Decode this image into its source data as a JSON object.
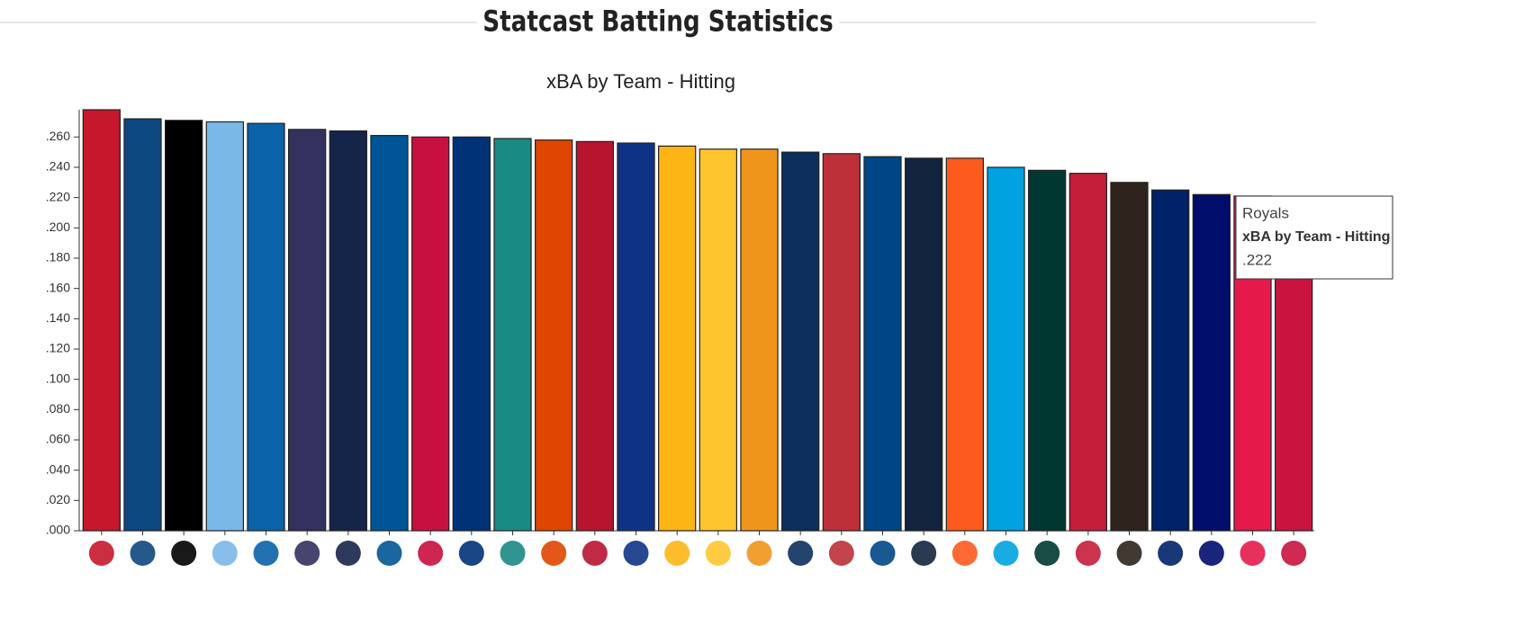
{
  "chart_data": {
    "type": "bar",
    "title": "Statcast Batting Statistics",
    "subtitle": "xBA by Team - Hitting",
    "categories": [
      null,
      null,
      null,
      null,
      null,
      null,
      null,
      null,
      null,
      null,
      null,
      null,
      null,
      null,
      null,
      null,
      null,
      null,
      null,
      null,
      null,
      null,
      null,
      null,
      null,
      null,
      null,
      null,
      null,
      null
    ],
    "values": [
      0.278,
      0.272,
      0.271,
      0.27,
      0.269,
      0.265,
      0.264,
      0.261,
      0.26,
      0.26,
      0.259,
      0.258,
      0.257,
      0.256,
      0.254,
      0.252,
      0.252,
      0.25,
      0.249,
      0.247,
      0.246,
      0.246,
      0.24,
      0.238,
      0.236,
      0.23,
      0.225,
      0.222,
      0.221,
      0.22
    ],
    "colors": [
      "#c6172c",
      "#0d477f",
      "#000000",
      "#7ab8e8",
      "#0a63a8",
      "#33315e",
      "#15254a",
      "#005596",
      "#c8103e",
      "#003278",
      "#1a8a84",
      "#df4601",
      "#b81430",
      "#0e3386",
      "#fdb515",
      "#ffc52f",
      "#f0951c",
      "#0c2f5d",
      "#bd3039",
      "#004687",
      "#13253e",
      "#fd5a1e",
      "#00a3e0",
      "#003831",
      "#c41e3a",
      "#2f241d",
      "#002268",
      "#000d6b",
      "#e5194a",
      "#c8143e"
    ],
    "ylim": [
      0,
      0.278
    ],
    "yticks": [
      {
        "value": 0,
        "label": ".000"
      },
      {
        "value": 0.02,
        "label": ".020"
      },
      {
        "value": 0.04,
        "label": ".040"
      },
      {
        "value": 0.06,
        "label": ".060"
      },
      {
        "value": 0.08,
        "label": ".080"
      },
      {
        "value": 0.1,
        "label": ".100"
      },
      {
        "value": 0.12,
        "label": ".120"
      },
      {
        "value": 0.14,
        "label": ".140"
      },
      {
        "value": 0.16,
        "label": ".160"
      },
      {
        "value": 0.18,
        "label": ".180"
      },
      {
        "value": 0.2,
        "label": ".200"
      },
      {
        "value": 0.22,
        "label": ".220"
      },
      {
        "value": 0.24,
        "label": ".240"
      },
      {
        "value": 0.26,
        "label": ".260"
      }
    ],
    "grid": false,
    "tooltip": {
      "category": "Royals",
      "series": "xBA by Team - Hitting",
      "index": 27,
      "value_label": ".222"
    }
  }
}
